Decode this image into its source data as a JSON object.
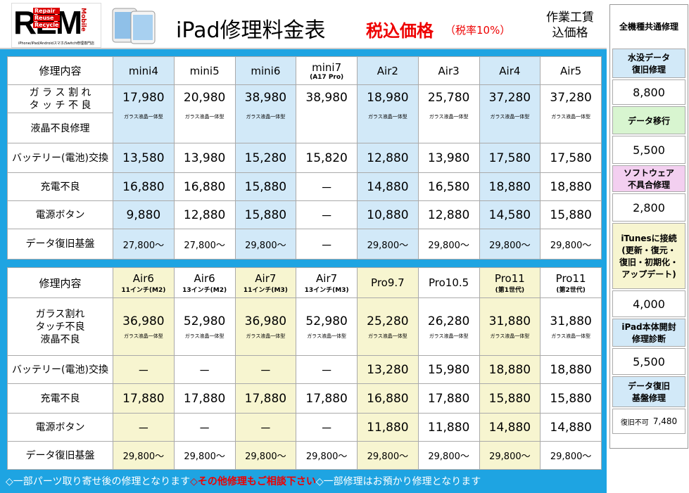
{
  "header": {
    "logo": {
      "letters": "REM",
      "tags": [
        "Repair",
        "Reuse",
        "Recycle"
      ],
      "side": "Mobile",
      "tagline": "iPhone/iPad/Androidスマホ/Switch修理専門店"
    },
    "title": "iPad修理料金表",
    "tax_label": "税込価格",
    "tax_rate": "（税率10%）",
    "note_lines": [
      "作業工賃",
      "込価格"
    ]
  },
  "tables": [
    {
      "header_label": "修理内容",
      "highlight": "#d2e9f8",
      "columns": [
        {
          "name": "mini4"
        },
        {
          "name": "mini5"
        },
        {
          "name": "mini6"
        },
        {
          "name": "mini7",
          "sub": "(A17 Pro)"
        },
        {
          "name": "Air2"
        },
        {
          "name": "Air3"
        },
        {
          "name": "Air4"
        },
        {
          "name": "Air5"
        }
      ],
      "rows": [
        {
          "label": [
            "ガ ラ ス 割 れ",
            "タ ッ チ 不 良"
          ],
          "sublabel": "液晶不良修理",
          "prices": [
            "17,980",
            "20,980",
            "38,980",
            "38,980",
            "18,980",
            "25,780",
            "37,280",
            "37,280"
          ],
          "notes": [
            "ガラス液晶一体型",
            "ガラス液晶一体型",
            "ガラス液晶一体型",
            null,
            "ガラス液晶一体型",
            "ガラス液晶一体型",
            "ガラス液晶一体型",
            "ガラス液晶一体型"
          ]
        },
        {
          "label": [
            "バッテリー(電池)交換"
          ],
          "prices": [
            "13,580",
            "13,980",
            "15,280",
            "15,820",
            "12,880",
            "13,980",
            "17,580",
            "17,580"
          ]
        },
        {
          "label": [
            "充電不良"
          ],
          "prices": [
            "16,880",
            "16,880",
            "15,880",
            "－",
            "14,880",
            "16,580",
            "18,880",
            "18,880"
          ]
        },
        {
          "label": [
            "電源ボタン"
          ],
          "prices": [
            "9,880",
            "12,880",
            "15,880",
            "－",
            "10,880",
            "12,880",
            "14,580",
            "15,880"
          ]
        },
        {
          "label": [
            "データ復旧基盤"
          ],
          "prices": [
            "27,800～",
            "27,800～",
            "29,800～",
            "－",
            "29,800～",
            "29,800～",
            "29,800～",
            "29,800～"
          ]
        }
      ]
    },
    {
      "header_label": "修理内容",
      "highlight": "#f7f5d0",
      "columns": [
        {
          "name": "Air6",
          "sub": "11インチ(M2)"
        },
        {
          "name": "Air6",
          "sub": "13インチ(M2)"
        },
        {
          "name": "Air7",
          "sub": "11インチ(M3)"
        },
        {
          "name": "Air7",
          "sub": "13インチ(M3)"
        },
        {
          "name": "Pro9.7"
        },
        {
          "name": "Pro10.5"
        },
        {
          "name": "Pro11",
          "sub": "(第1世代)"
        },
        {
          "name": "Pro11",
          "sub": "(第2世代)"
        }
      ],
      "rows": [
        {
          "label": [
            "ガラス割れ",
            "タッチ不良",
            "液晶不良"
          ],
          "prices": [
            "36,980",
            "52,980",
            "36,980",
            "52,980",
            "25,280",
            "26,280",
            "31,880",
            "31,880"
          ],
          "notes": [
            "ガラス液晶一体型",
            "ガラス液晶一体型",
            "ガラス液晶一体型",
            "ガラス液晶一体型",
            "ガラス液晶一体型",
            "ガラス液晶一体型",
            "ガラス液晶一体型",
            "ガラス液晶一体型"
          ]
        },
        {
          "label": [
            "バッテリー(電池)交換"
          ],
          "prices": [
            "－",
            "－",
            "－",
            "－",
            "13,280",
            "15,980",
            "18,880",
            "18,880"
          ]
        },
        {
          "label": [
            "充電不良"
          ],
          "prices": [
            "17,880",
            "17,880",
            "17,880",
            "17,880",
            "16,880",
            "17,880",
            "15,880",
            "15,880"
          ]
        },
        {
          "label": [
            "電源ボタン"
          ],
          "prices": [
            "－",
            "－",
            "－",
            "－",
            "11,880",
            "11,880",
            "14,880",
            "14,880"
          ]
        },
        {
          "label": [
            "データ復旧基盤"
          ],
          "prices": [
            "29,800～",
            "29,800～",
            "29,800～",
            "29,800～",
            "29,800～",
            "29,800～",
            "29,800～",
            "29,800～"
          ]
        }
      ]
    }
  ],
  "footer": [
    {
      "text": "◇一部パーツ取り寄せ後の修理となります"
    },
    {
      "text": "◇その他修理もご相談下さい",
      "emphasis": true
    },
    {
      "text": "◇一部修理はお預かり修理となります"
    }
  ],
  "sidebar": {
    "title": "全機種共通修理",
    "items": [
      {
        "title": [
          "水没データ",
          "復旧修理"
        ],
        "color": "#d2e9f8",
        "price": "8,800"
      },
      {
        "title": [
          "データ移行"
        ],
        "color": "#d8f5d0",
        "price": "5,500"
      },
      {
        "title": [
          "ソフトウェア",
          "不具合修理"
        ],
        "color": "#f3cff0",
        "price": "2,800"
      },
      {
        "title": [
          "iTunesに接続",
          "(更新・復元・",
          "復旧・初期化・",
          "アップデート)"
        ],
        "color": "#f7f5d0",
        "price": "4,000"
      },
      {
        "title": [
          "iPad本体開封",
          "修理診断"
        ],
        "color": "#d2e9f8",
        "price": "5,500"
      },
      {
        "title": [
          "データ復旧",
          "基盤修理"
        ],
        "color": "#d2e9f8",
        "prefix": "復旧不可",
        "price": "7,480"
      }
    ]
  }
}
